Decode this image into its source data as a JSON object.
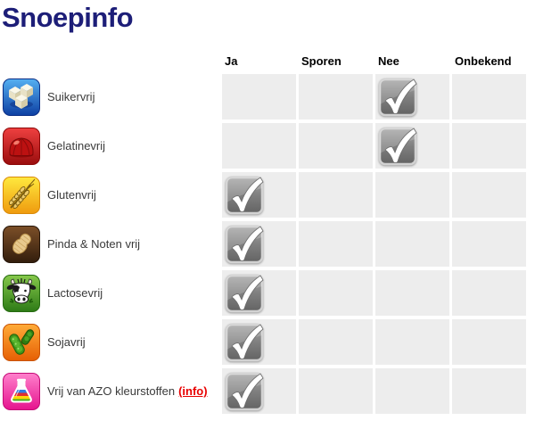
{
  "title": "Snoepinfo",
  "table": {
    "columns": [
      "Ja",
      "Sporen",
      "Nee",
      "Onbekend"
    ],
    "rows": [
      {
        "label": "Suikervrij",
        "icon": "sugar-cubes-icon",
        "icon_bg": "#1e63c8",
        "answer": "Nee"
      },
      {
        "label": "Gelatinevrij",
        "icon": "gelatin-pudding-icon",
        "icon_bg": "#c41414",
        "answer": "Nee"
      },
      {
        "label": "Glutenvrij",
        "icon": "wheat-ear-icon",
        "icon_bg": "#f5b90a",
        "answer": "Ja"
      },
      {
        "label": "Pinda & Noten vrij",
        "icon": "peanut-icon",
        "icon_bg": "#5a3a1e",
        "answer": "Ja"
      },
      {
        "label": "Lactosevrij",
        "icon": "cow-icon",
        "icon_bg": "#4da02c",
        "answer": "Ja"
      },
      {
        "label": "Sojavrij",
        "icon": "soy-pods-icon",
        "icon_bg": "#f07c14",
        "answer": "Ja"
      },
      {
        "label": "Vrij van AZO kleurstoffen",
        "icon": "chemistry-flask-icon",
        "icon_bg": "#ef2a96",
        "answer": "Ja",
        "link": "(info)"
      }
    ],
    "checkmark": {
      "symbol": "checkmark",
      "body_color": "#7f7f7f",
      "glyph_color": "#ffffff"
    }
  },
  "colors": {
    "title": "#1d1e78",
    "cell_bg": "#ededed",
    "label_text": "#3a3a3a",
    "link": "#e80000",
    "header_text": "#000000"
  }
}
